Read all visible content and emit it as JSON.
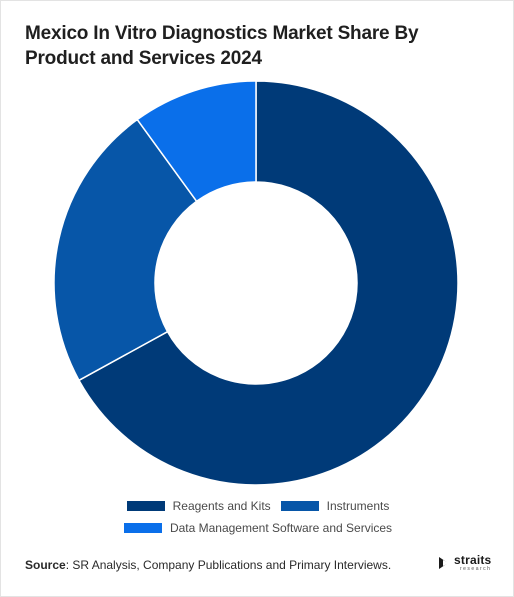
{
  "header": {
    "title": "Mexico In Vitro Diagnostics Market Share By Product and Services 2024"
  },
  "chart_data": {
    "type": "pie",
    "variant": "donut",
    "title": "Mexico In Vitro Diagnostics Market Share By Product and Services 2024",
    "categories": [
      "Reagents and Kits",
      "Instruments",
      "Data Management Software and Services"
    ],
    "values": [
      67,
      23,
      10
    ],
    "unit": "%",
    "colors": [
      "#003a78",
      "#0756a8",
      "#0a6fea"
    ],
    "legend_position": "bottom"
  },
  "legend": {
    "items": [
      {
        "label": "Reagents and Kits",
        "color": "#003a78"
      },
      {
        "label": "Instruments",
        "color": "#0756a8"
      },
      {
        "label": "Data Management Software and Services",
        "color": "#0a6fea"
      }
    ]
  },
  "footer": {
    "source_label": "Source",
    "source_text": ": SR Analysis, Company Publications and Primary Interviews.",
    "logo_word": "straits",
    "logo_sub": "research"
  }
}
